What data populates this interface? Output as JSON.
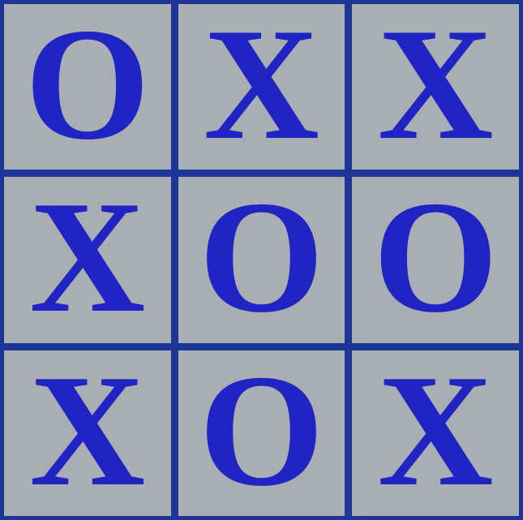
{
  "board": {
    "cells": [
      "O",
      "X",
      "X",
      "X",
      "O",
      "O",
      "X",
      "O",
      "X"
    ]
  },
  "colors": {
    "grid_lines": "#1c3596",
    "cell_background": "#a9aeb3",
    "mark": "#1f24c2"
  }
}
